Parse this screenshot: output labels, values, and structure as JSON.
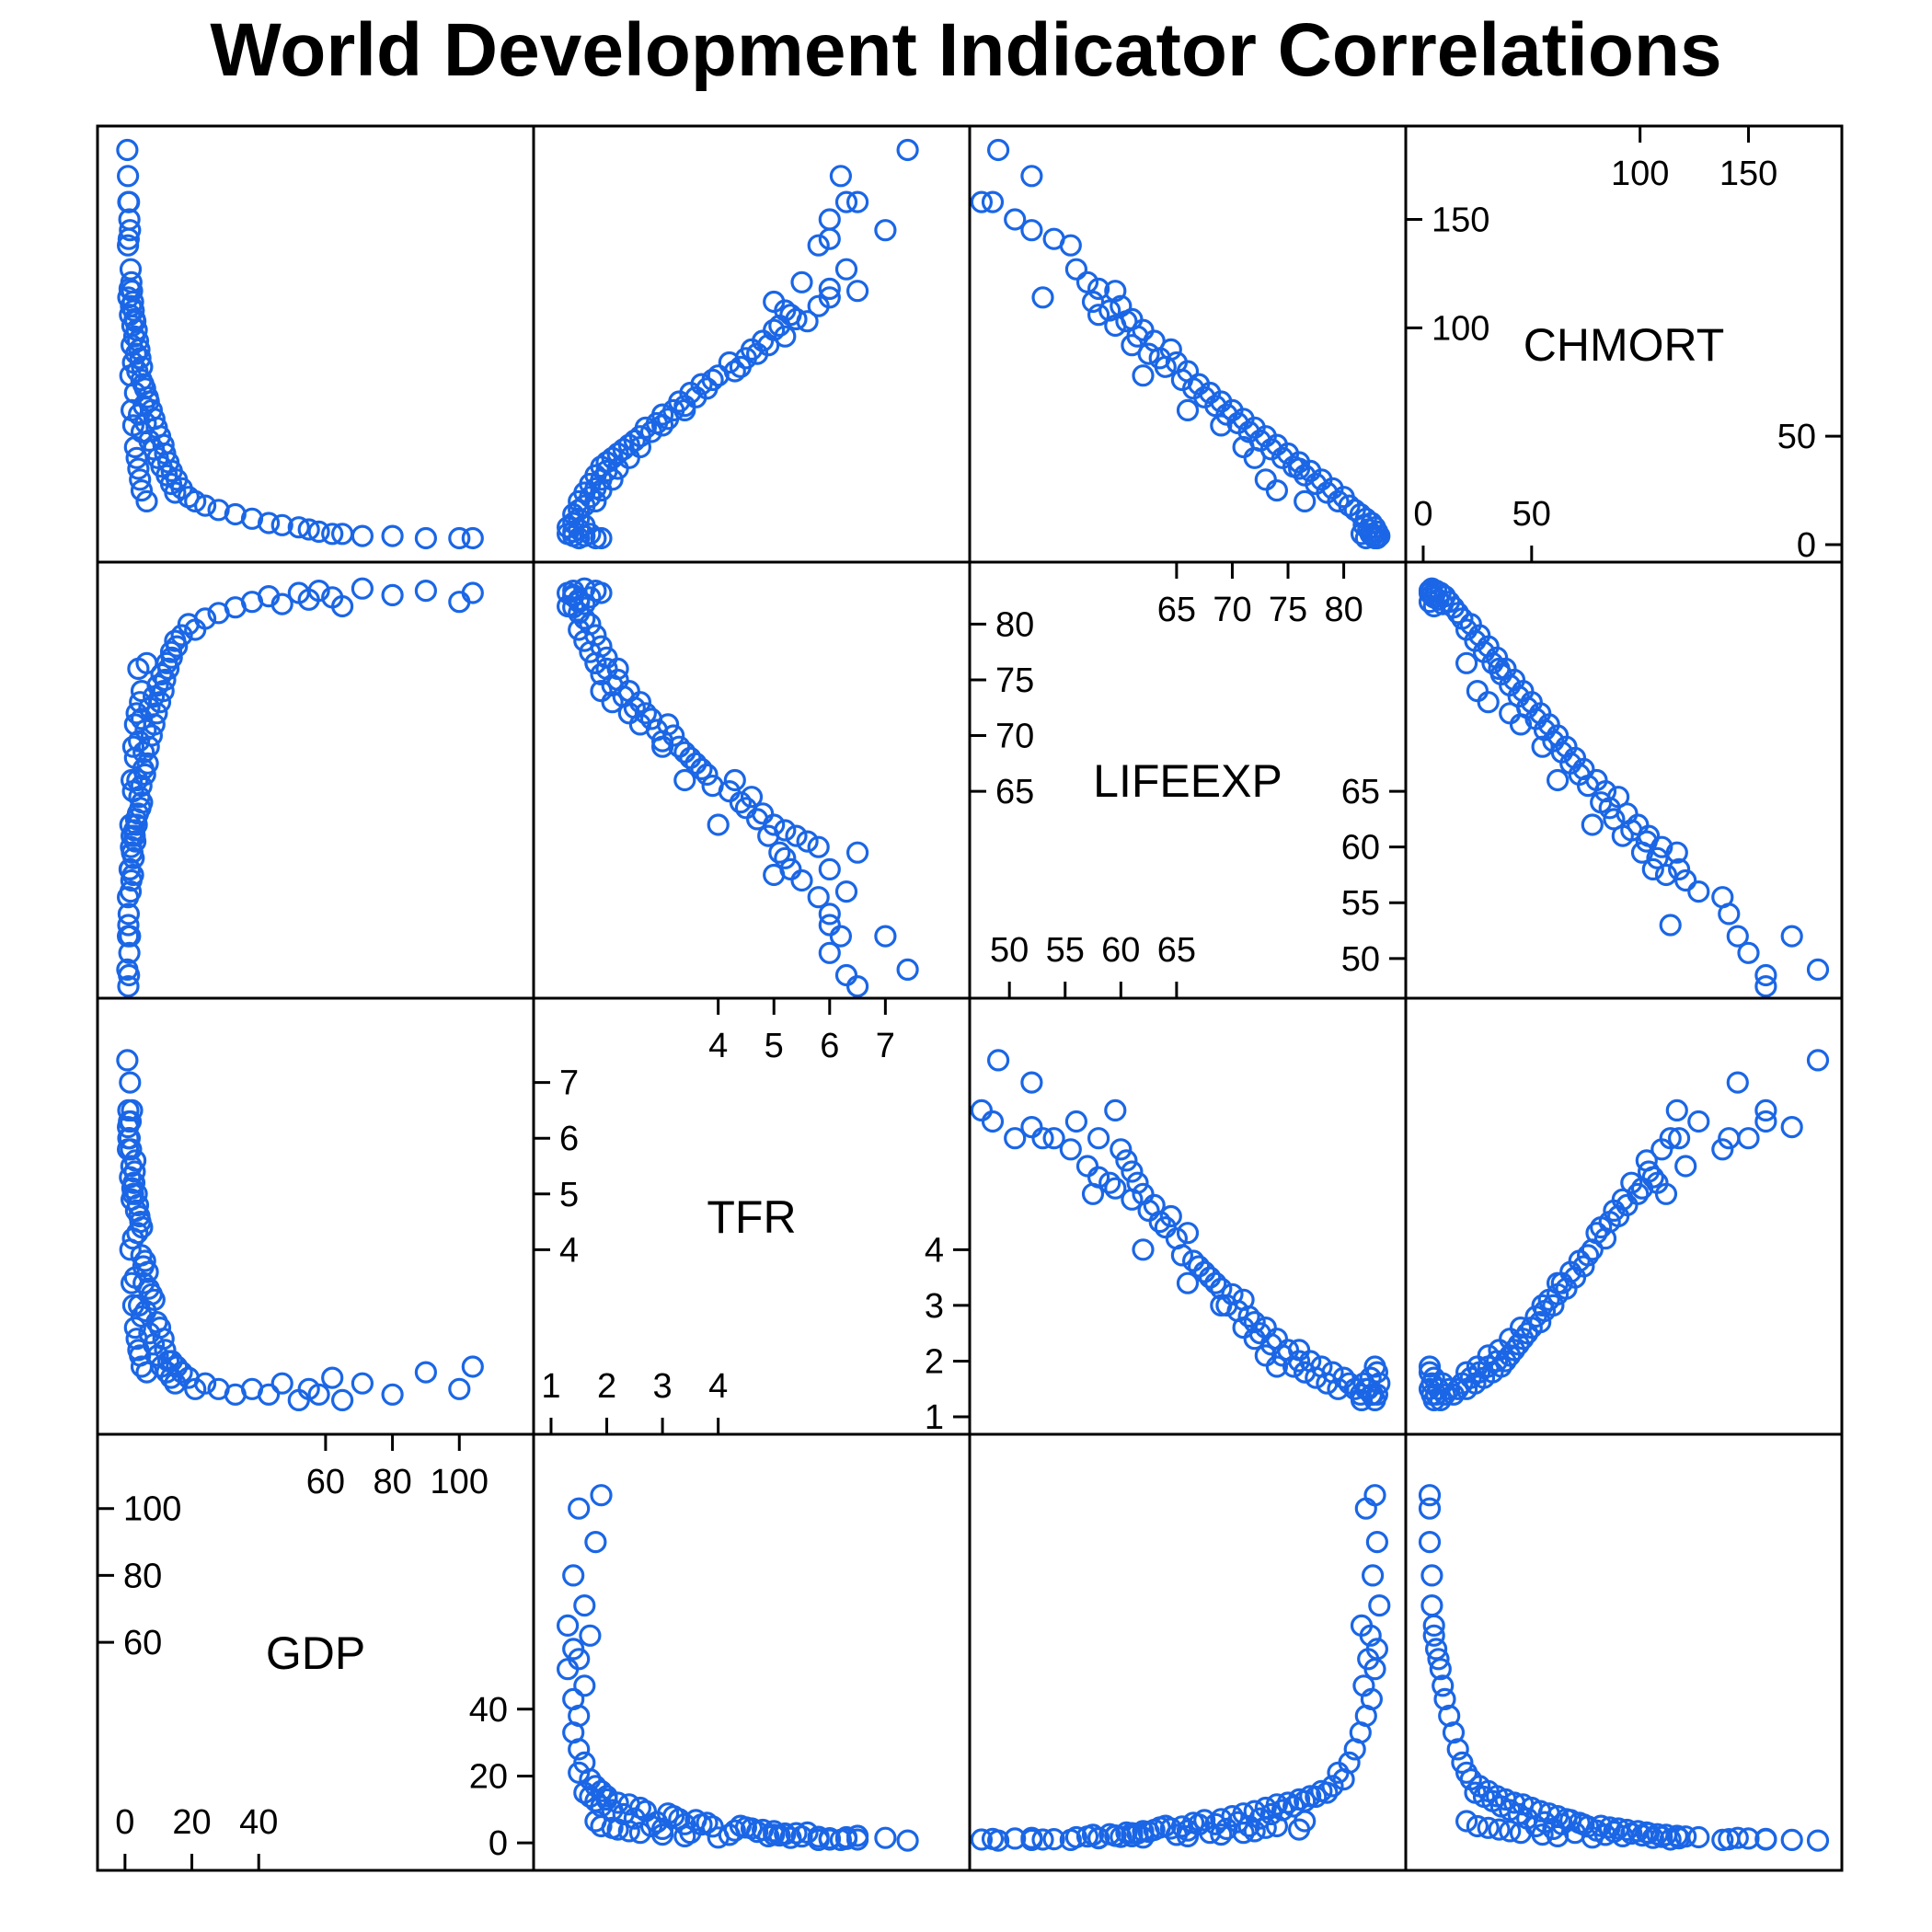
{
  "chart_data": {
    "type": "scatter",
    "title": "World Development Indicator Correlations",
    "kind": "scatterplot-matrix",
    "point_color": "#1a66e6",
    "variables": [
      {
        "name": "CHMORT",
        "range": [
          0,
          185
        ],
        "ticks_top": [
          "100",
          "150"
        ],
        "ticks_right": [
          "50",
          "0"
        ],
        "ticks_bottom": [
          "0",
          "50"
        ],
        "ticks_left": [
          "150",
          "100"
        ]
      },
      {
        "name": "LIFEEXP",
        "range": [
          48,
          84
        ],
        "ticks_top": [
          "65",
          "70",
          "75",
          "80"
        ],
        "ticks_right": [
          "65",
          "60",
          "55",
          "50"
        ],
        "ticks_bottom": [
          "50",
          "55",
          "60",
          "65"
        ],
        "ticks_left": [
          "80",
          "75",
          "70",
          "65"
        ]
      },
      {
        "name": "TFR",
        "range": [
          1.0,
          8.2
        ],
        "ticks_top": [
          "4",
          "5",
          "6",
          "7"
        ],
        "ticks_right": [
          "4",
          "3",
          "2",
          "1"
        ],
        "ticks_bottom": [
          "1",
          "2",
          "3",
          "4"
        ],
        "ticks_left": [
          "7",
          "6",
          "5",
          "4"
        ]
      },
      {
        "name": "GDP",
        "range": [
          -3,
          117
        ],
        "ticks_top": [
          "60",
          "80",
          "100"
        ],
        "ticks_right": [
          "40",
          "20",
          "0"
        ],
        "ticks_bottom": [
          "0",
          "20",
          "40"
        ],
        "ticks_left": [
          "100",
          "80",
          "60"
        ]
      }
    ],
    "observations": [
      [
        182,
        49.0,
        7.4,
        0.7
      ],
      [
        170,
        52.0,
        6.2,
        0.9
      ],
      [
        158,
        48.5,
        6.3,
        1.2
      ],
      [
        158,
        47.5,
        6.5,
        1.0
      ],
      [
        150,
        50.5,
        6.0,
        1.3
      ],
      [
        145,
        52.0,
        7.0,
        1.5
      ],
      [
        141,
        54.0,
        6.0,
        1.1
      ],
      [
        138,
        55.5,
        5.8,
        0.9
      ],
      [
        127,
        56.0,
        6.3,
        1.7
      ],
      [
        121,
        57.0,
        5.5,
        1.9
      ],
      [
        118,
        58.0,
        6.0,
        1.4
      ],
      [
        117,
        59.5,
        6.5,
        2.1
      ],
      [
        114,
        53.0,
        6.0,
        1.0
      ],
      [
        112,
        57.5,
        5.0,
        2.4
      ],
      [
        110,
        60.0,
        5.8,
        1.8
      ],
      [
        108,
        59.0,
        5.2,
        2.6
      ],
      [
        106,
        58.0,
        5.3,
        1.5
      ],
      [
        104,
        61.0,
        5.4,
        2.9
      ],
      [
        103,
        60.5,
        5.6,
        3.1
      ],
      [
        101,
        59.5,
        5.1,
        2.2
      ],
      [
        99,
        62.0,
        5.0,
        3.5
      ],
      [
        96,
        61.5,
        5.2,
        2.8
      ],
      [
        94,
        63.0,
        4.8,
        3.9
      ],
      [
        92,
        61.0,
        4.9,
        2.0
      ],
      [
        90,
        64.5,
        4.6,
        4.3
      ],
      [
        88,
        62.5,
        4.7,
        3.3
      ],
      [
        86,
        63.5,
        4.5,
        4.6
      ],
      [
        84,
        65.0,
        4.2,
        2.4
      ],
      [
        82,
        64.0,
        4.4,
        5.1
      ],
      [
        80,
        66.0,
        4.3,
        3.7
      ],
      [
        78,
        62.0,
        4.0,
        1.6
      ],
      [
        76,
        65.5,
        3.9,
        4.9
      ],
      [
        74,
        67.0,
        3.7,
        5.5
      ],
      [
        72,
        66.5,
        3.8,
        6.0
      ],
      [
        70,
        68.0,
        3.5,
        3.0
      ],
      [
        68,
        67.5,
        3.6,
        6.8
      ],
      [
        66,
        69.0,
        3.3,
        7.1
      ],
      [
        64,
        68.5,
        3.4,
        5.6
      ],
      [
        62,
        70.0,
        3.2,
        8.0
      ],
      [
        60,
        69.5,
        3.0,
        4.2
      ],
      [
        58,
        71.0,
        3.1,
        8.8
      ],
      [
        56,
        70.5,
        2.9,
        6.2
      ],
      [
        54,
        72.0,
        2.7,
        9.5
      ],
      [
        52,
        71.5,
        2.8,
        5.0
      ],
      [
        50,
        73.0,
        2.6,
        10.5
      ],
      [
        48,
        72.5,
        2.5,
        7.3
      ],
      [
        46,
        74.0,
        2.4,
        11.5
      ],
      [
        44,
        73.5,
        2.3,
        8.6
      ],
      [
        42,
        75.0,
        2.2,
        12.0
      ],
      [
        40,
        74.5,
        2.1,
        9.8
      ],
      [
        38,
        76.0,
        2.0,
        13.0
      ],
      [
        36,
        75.5,
        1.9,
        10.9
      ],
      [
        34,
        77.0,
        2.0,
        14.0
      ],
      [
        32,
        76.5,
        1.8,
        12.5
      ],
      [
        30,
        78.0,
        1.9,
        15.5
      ],
      [
        28,
        77.5,
        1.7,
        13.8
      ],
      [
        26,
        79.0,
        1.8,
        17.0
      ],
      [
        24,
        78.5,
        1.6,
        15.0
      ],
      [
        22,
        80.0,
        1.7,
        19.0
      ],
      [
        20,
        79.5,
        1.5,
        21.0
      ],
      [
        18,
        80.5,
        1.6,
        24.0
      ],
      [
        16,
        81.0,
        1.5,
        28.0
      ],
      [
        14,
        81.5,
        1.4,
        33.0
      ],
      [
        12,
        82.0,
        1.5,
        38.0
      ],
      [
        10,
        82.5,
        1.4,
        43.0
      ],
      [
        9,
        81.8,
        1.6,
        47.0
      ],
      [
        8,
        82.8,
        1.3,
        52.0
      ],
      [
        7,
        82.2,
        1.5,
        55.0
      ],
      [
        6,
        83.0,
        1.4,
        58.0
      ],
      [
        5,
        82.4,
        1.7,
        62.0
      ],
      [
        5,
        81.6,
        1.3,
        65.0
      ],
      [
        4,
        83.2,
        1.6,
        71.0
      ],
      [
        4,
        82.6,
        1.4,
        80.0
      ],
      [
        3,
        83.0,
        1.8,
        90.0
      ],
      [
        3,
        82.0,
        1.5,
        100.0
      ],
      [
        3,
        82.8,
        1.9,
        104.0
      ],
      [
        35,
        76.0,
        2.2,
        4.0
      ],
      [
        45,
        71.0,
        2.6,
        3.0
      ],
      [
        55,
        69.0,
        3.0,
        2.5
      ],
      [
        25,
        74.0,
        1.9,
        5.0
      ],
      [
        62,
        66.0,
        3.4,
        2.0
      ],
      [
        30,
        73.0,
        2.1,
        4.5
      ],
      [
        40,
        72.0,
        2.4,
        3.5
      ],
      [
        20,
        76.5,
        1.8,
        6.5
      ]
    ]
  }
}
